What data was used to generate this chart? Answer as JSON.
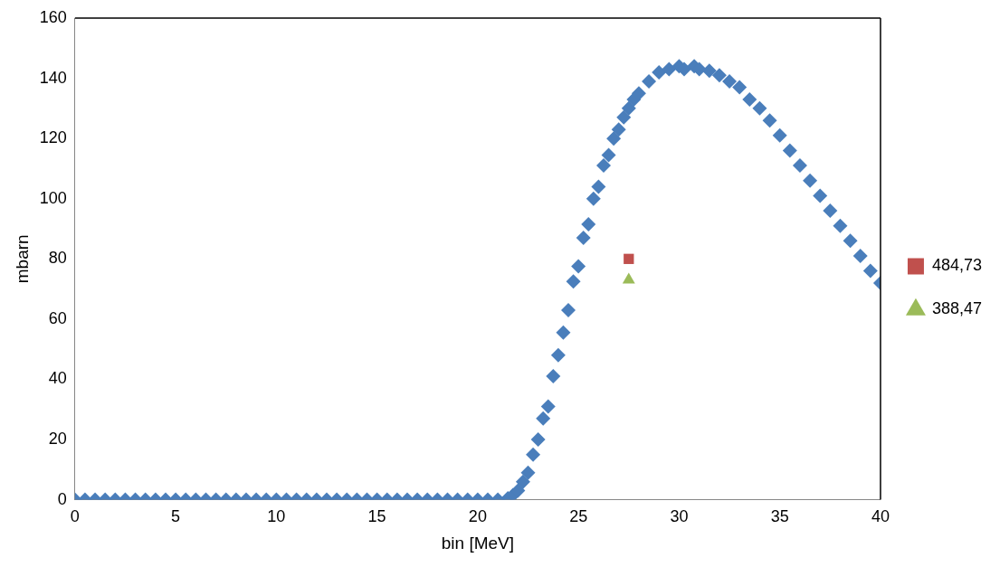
{
  "chart_data": {
    "type": "scatter",
    "xlabel": "bin [MeV]",
    "ylabel": "mbarn",
    "xlim": [
      0,
      40
    ],
    "xticks": [
      0,
      5,
      10,
      15,
      20,
      25,
      30,
      35,
      40
    ],
    "ylim": [
      0,
      160
    ],
    "yticks": [
      0,
      20,
      40,
      60,
      80,
      100,
      120,
      140,
      160
    ],
    "grid": false,
    "legend": "right",
    "series": [
      {
        "color": "#4a7ebb",
        "marker": "diamond",
        "x": [
          0,
          0.5,
          1,
          1.5,
          2,
          2.5,
          3,
          3.5,
          4,
          4.5,
          5,
          5.5,
          6,
          6.5,
          7,
          7.5,
          8,
          8.5,
          9,
          9.5,
          10,
          10.5,
          11,
          11.5,
          12,
          12.5,
          13,
          13.5,
          14,
          14.5,
          15,
          15.5,
          16,
          16.5,
          17,
          17.5,
          18,
          18.5,
          19,
          19.5,
          20,
          20.5,
          21,
          21.5,
          21.75,
          22,
          22.25,
          22.5,
          22.75,
          23,
          23.25,
          23.5,
          23.75,
          24,
          24.25,
          24.5,
          24.75,
          25,
          25.25,
          25.5,
          25.75,
          26,
          26.25,
          26.5,
          26.75,
          27,
          27.25,
          27.5,
          27.75,
          28,
          28.5,
          29,
          29.5,
          30,
          30.25,
          30.75,
          31,
          31.5,
          32,
          32.5,
          33,
          33.5,
          34,
          34.5,
          35,
          35.5,
          36,
          36.5,
          37,
          37.5,
          38,
          38.5,
          39,
          39.5,
          40
        ],
        "values": [
          0,
          0,
          0,
          0,
          0,
          0,
          0,
          0,
          0,
          0,
          0,
          0,
          0,
          0,
          0,
          0,
          0,
          0,
          0,
          0,
          0,
          0,
          0,
          0,
          0,
          0,
          0,
          0,
          0,
          0,
          0,
          0,
          0,
          0,
          0,
          0,
          0,
          0,
          0,
          0,
          0,
          0,
          0,
          0.5,
          1.5,
          3,
          6,
          9,
          15,
          20,
          27,
          31,
          41,
          48,
          55.5,
          63,
          72.5,
          77.5,
          87,
          91.5,
          100,
          104,
          111,
          114.5,
          120,
          123,
          127,
          130,
          133,
          135,
          139,
          142,
          143,
          144,
          143,
          144,
          143,
          142.5,
          141,
          139,
          137,
          133,
          130,
          126,
          121,
          116,
          111,
          106,
          101,
          96,
          91,
          86,
          81,
          76,
          72
        ]
      },
      {
        "name": "484,73",
        "color": "#c0504d",
        "marker": "square",
        "x": [
          27.5
        ],
        "values": [
          80
        ]
      },
      {
        "name": "388,47",
        "color": "#9bbb59",
        "marker": "triangle",
        "x": [
          27.5
        ],
        "values": [
          73
        ]
      }
    ]
  }
}
